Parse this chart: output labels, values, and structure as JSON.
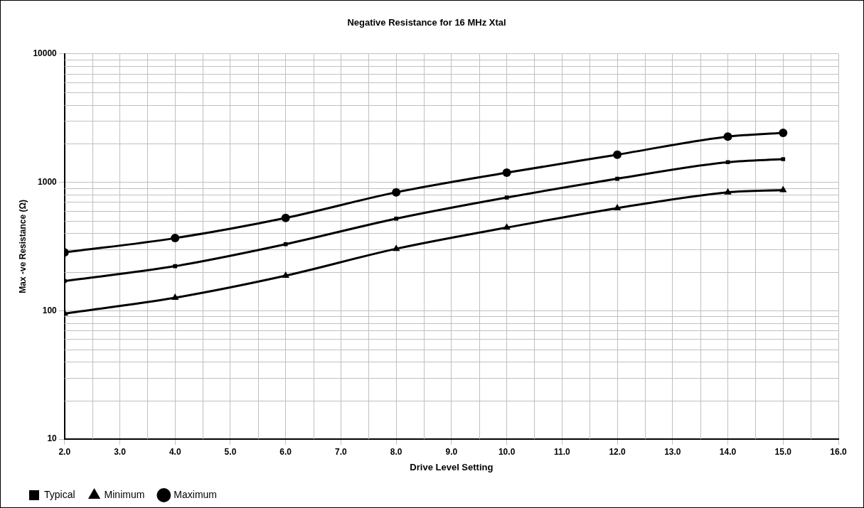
{
  "chart_data": {
    "type": "line",
    "title": "Negative Resistance for 16 MHz Xtal",
    "xlabel": "Drive Level Setting",
    "ylabel": "Max -ve Resistance (Ω)",
    "x": [
      2,
      4,
      6,
      8,
      10,
      12,
      14,
      15
    ],
    "series": [
      {
        "name": "Typical",
        "color": "#000000",
        "marker": "square",
        "values": [
          170,
          222,
          329,
          520,
          759,
          1063,
          1431,
          1511
        ]
      },
      {
        "name": "Minimum",
        "color": "#000000",
        "marker": "triangle",
        "values": [
          95,
          126,
          187,
          303,
          443,
          628,
          834,
          869
        ]
      },
      {
        "name": "Maximum",
        "color": "#000000",
        "marker": "circle",
        "values": [
          284,
          367,
          527,
          834,
          1185,
          1638,
          2264,
          2423
        ]
      }
    ],
    "log": "y",
    "xlim": [
      2,
      16
    ],
    "xticks": [
      {
        "value": 2,
        "label": "2.0"
      },
      {
        "value": 3,
        "label": "3.0"
      },
      {
        "value": 4,
        "label": "4.0"
      },
      {
        "value": 5,
        "label": "5.0"
      },
      {
        "value": 6,
        "label": "6.0"
      },
      {
        "value": 7,
        "label": "7.0"
      },
      {
        "value": 8,
        "label": "8.0"
      },
      {
        "value": 9,
        "label": "9.0"
      },
      {
        "value": 10,
        "label": "10.0"
      },
      {
        "value": 11,
        "label": "11.0"
      },
      {
        "value": 12,
        "label": "12.0"
      },
      {
        "value": 13,
        "label": "13.0"
      },
      {
        "value": 14,
        "label": "14.0"
      },
      {
        "value": 15,
        "label": "15.0"
      },
      {
        "value": 16,
        "label": "16.0"
      }
    ],
    "ylim": [
      10,
      10000
    ],
    "yticks": [
      10,
      100,
      1000,
      10000
    ],
    "grid": true,
    "legend": "bottom left",
    "line_style": "solid"
  }
}
